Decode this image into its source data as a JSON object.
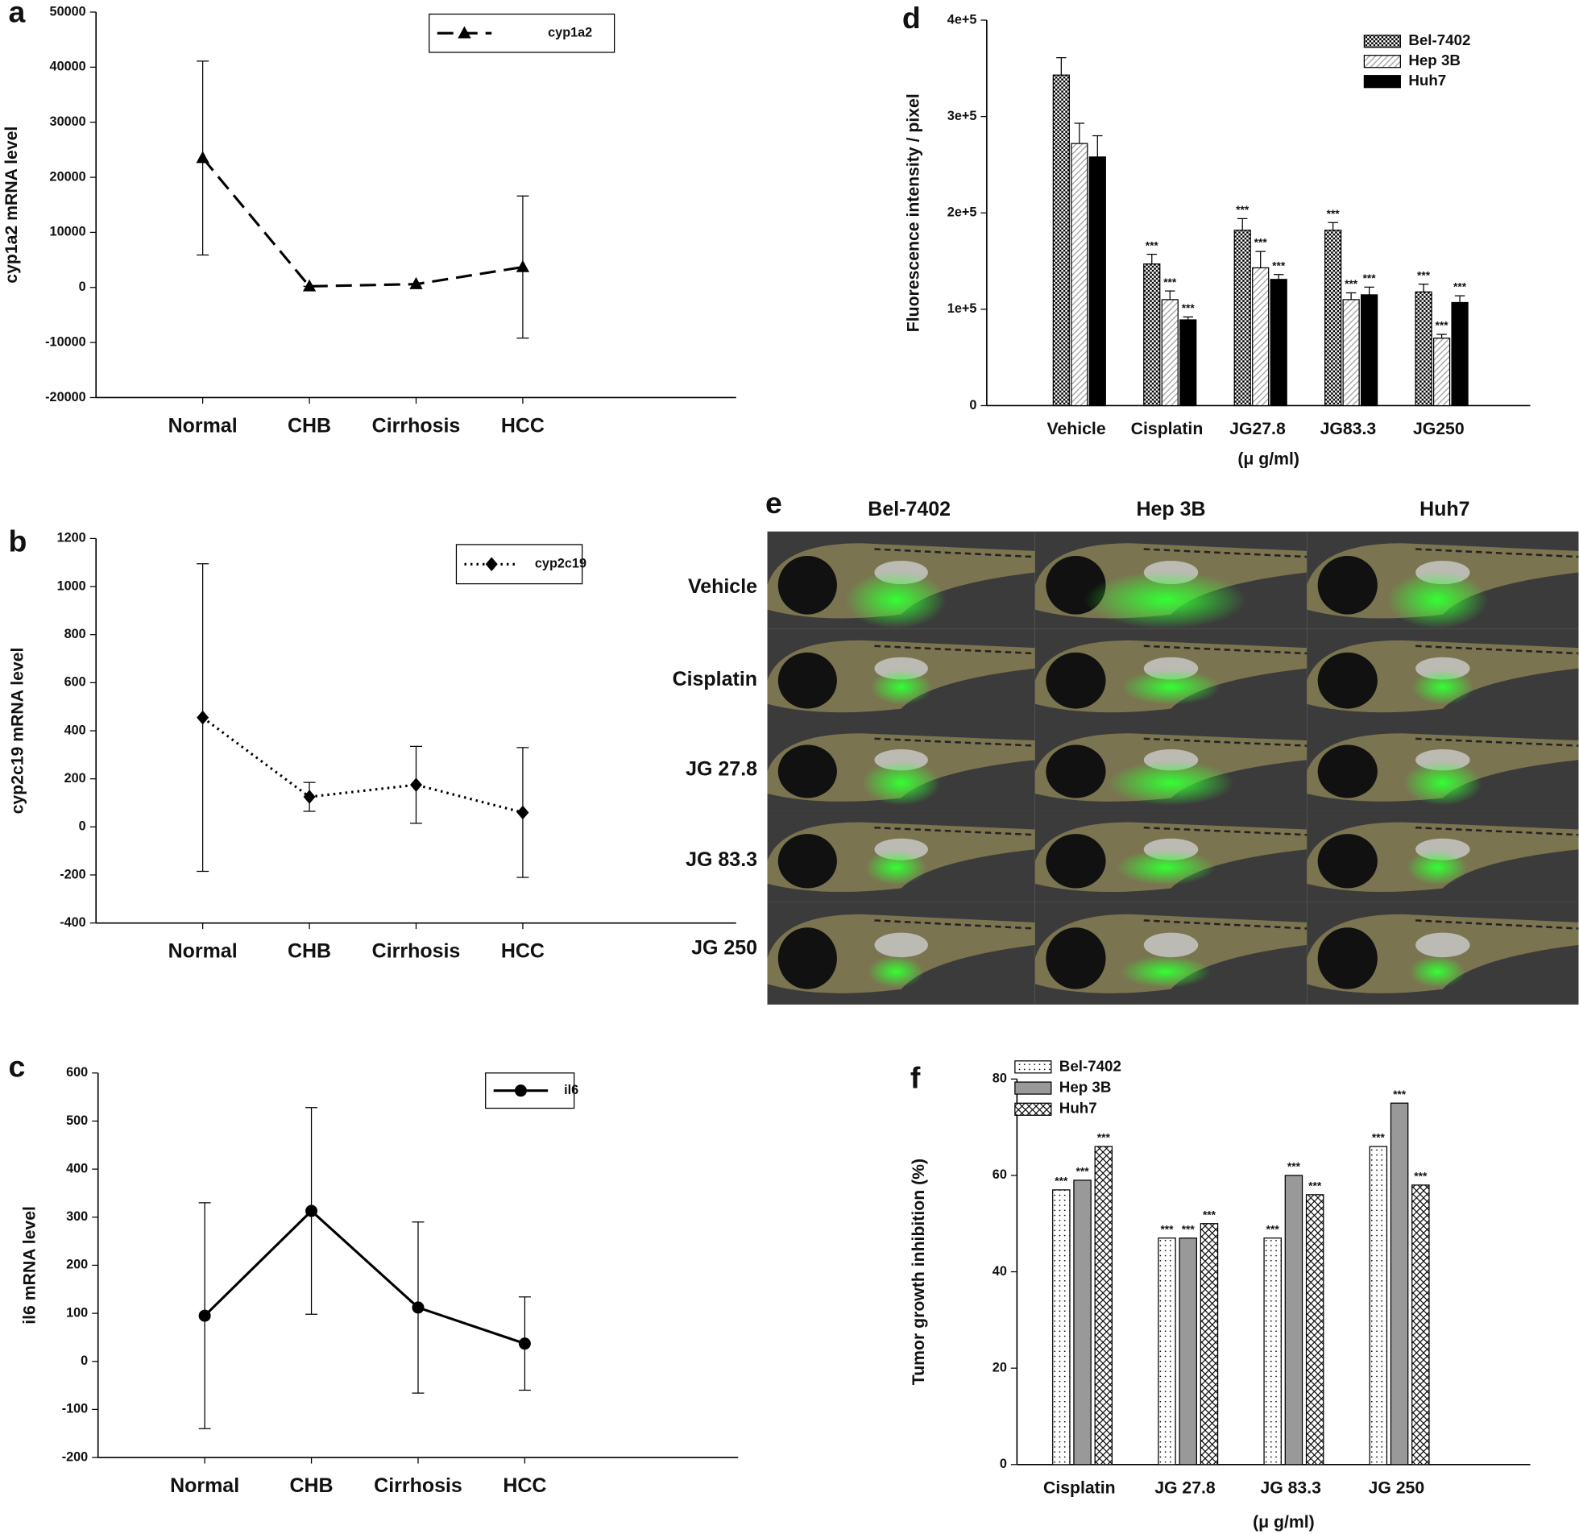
{
  "chart_data": [
    {
      "type": "line",
      "panel": "a",
      "ylabel": "cyp1a2 mRNA level",
      "categories": [
        "Normal",
        "CHB",
        "Cirrhosis",
        "HCC"
      ],
      "series": [
        {
          "name": "cyp1a2",
          "color": "#000000",
          "line_style": "dashed",
          "marker": "triangle",
          "values": [
            23500,
            200,
            600,
            3700
          ],
          "errors": [
            17600,
            0,
            0,
            12900
          ]
        }
      ],
      "ylim": [
        -20000,
        50000
      ],
      "yticks": [
        -20000,
        -10000,
        0,
        10000,
        20000,
        30000,
        40000,
        50000
      ]
    },
    {
      "type": "line",
      "panel": "b",
      "ylabel": "cyp2c19 mRNA level",
      "categories": [
        "Normal",
        "CHB",
        "Cirrhosis",
        "HCC"
      ],
      "series": [
        {
          "name": "cyp2c19",
          "color": "#000000",
          "line_style": "dotted",
          "marker": "diamond",
          "values": [
            455,
            125,
            175,
            60
          ],
          "errors": [
            640,
            60,
            160,
            270
          ]
        }
      ],
      "ylim": [
        -400,
        1200
      ],
      "yticks": [
        -400,
        -200,
        0,
        200,
        400,
        600,
        800,
        1000,
        1200
      ]
    },
    {
      "type": "line",
      "panel": "c",
      "ylabel": "il6 mRNA level",
      "categories": [
        "Normal",
        "CHB",
        "Cirrhosis",
        "HCC"
      ],
      "series": [
        {
          "name": "il6",
          "color": "#000000",
          "line_style": "solid",
          "marker": "circle",
          "values": [
            95,
            313,
            112,
            37
          ],
          "errors": [
            235,
            215,
            178,
            97
          ]
        }
      ],
      "ylim": [
        -200,
        600
      ],
      "yticks": [
        -200,
        -100,
        0,
        100,
        200,
        300,
        400,
        500,
        600
      ]
    },
    {
      "type": "bar",
      "panel": "d",
      "ylabel": "Fluorescence intensity / pixel",
      "xlabel": "(μ g/ml)",
      "categories": [
        "Vehicle",
        "Cisplatin",
        "JG27.8",
        "JG83.3",
        "JG250"
      ],
      "series": [
        {
          "name": "Bel-7402",
          "color": "#000000",
          "pattern": "checker",
          "values": [
            343000,
            147000,
            182000,
            182000,
            118000
          ],
          "errors": [
            18000,
            10000,
            12000,
            8000,
            8000
          ],
          "significance": [
            null,
            "***",
            "***",
            "***",
            "***"
          ]
        },
        {
          "name": "Hep 3B",
          "color": "#999999",
          "pattern": "hatch",
          "values": [
            272000,
            110000,
            143000,
            110000,
            70000
          ],
          "errors": [
            21000,
            9000,
            17000,
            7000,
            4000
          ],
          "significance": [
            null,
            "***",
            "***",
            "***",
            "***"
          ]
        },
        {
          "name": "Huh7",
          "color": "#000000",
          "pattern": "solid",
          "values": [
            258000,
            89000,
            131000,
            115000,
            107000
          ],
          "errors": [
            22000,
            3000,
            5000,
            8000,
            7000
          ],
          "significance": [
            null,
            "***",
            "***",
            "***",
            "***"
          ]
        }
      ],
      "ylim": [
        0,
        400000
      ],
      "yticks": [
        0,
        {
          "value": 100000,
          "label": "1e+5"
        },
        {
          "value": 200000,
          "label": "2e+5"
        },
        {
          "value": 300000,
          "label": "3e+5"
        },
        {
          "value": 400000,
          "label": "4e+5"
        }
      ]
    },
    {
      "type": "bar",
      "panel": "f",
      "ylabel": "Tumor growth inhibition (%)",
      "xlabel": "(μ g/ml)",
      "categories": [
        "Cisplatin",
        "JG 27.8",
        "JG 83.3",
        "JG 250"
      ],
      "series": [
        {
          "name": "Bel-7402",
          "color": "#000000",
          "pattern": "dots",
          "values": [
            57,
            47,
            47,
            66
          ],
          "significance": [
            "***",
            "***",
            "***",
            "***"
          ]
        },
        {
          "name": "Hep 3B",
          "color": "#999999",
          "pattern": "solid",
          "values": [
            59,
            47,
            60,
            75
          ],
          "significance": [
            "***",
            "***",
            "***",
            "***"
          ]
        },
        {
          "name": "Huh7",
          "color": "#000000",
          "pattern": "cross",
          "values": [
            66,
            50,
            56,
            58
          ],
          "significance": [
            "***",
            "***",
            "***",
            "***"
          ]
        }
      ],
      "ylim": [
        0,
        80
      ],
      "yticks": [
        0,
        20,
        40,
        60,
        80
      ]
    }
  ],
  "image_panel": {
    "panel": "e",
    "columns": [
      "Bel-7402",
      "Hep 3B",
      "Huh7"
    ],
    "rows": [
      "Vehicle",
      "Cisplatin",
      "JG 27.8",
      "JG 83.3",
      "JG 250"
    ]
  }
}
